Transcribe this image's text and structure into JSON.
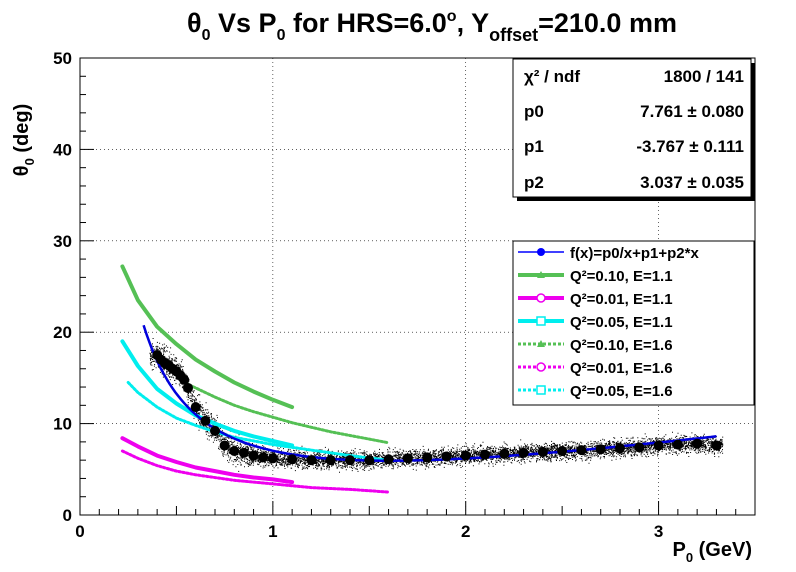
{
  "chart_data": {
    "type": "scatter",
    "title": {
      "theta": "θ",
      "theta_sub": "0",
      "part1": " Vs P",
      "p_sub": "0",
      "part2": " for HRS=6.0",
      "deg_sup": "o",
      "part3": ", Y",
      "y_sub": "offset",
      "part4": "=210.0 mm"
    },
    "ylabel": {
      "theta": "θ",
      "sub": "0",
      "unit": " (deg)"
    },
    "xlabel": {
      "p": "P",
      "sub": "0",
      "unit": " (GeV)"
    },
    "xlim": [
      0,
      3.5
    ],
    "ylim": [
      0,
      50
    ],
    "x_ticks": [
      "0",
      "1",
      "2",
      "3"
    ],
    "y_ticks": [
      "0",
      "10",
      "20",
      "30",
      "40",
      "50"
    ],
    "grid": true,
    "fit_box": {
      "rows": [
        {
          "label": "χ² / ndf",
          "value": "1800 / 141"
        },
        {
          "label": "p0",
          "value": "7.761 ± 0.080"
        },
        {
          "label": "p1",
          "value": "-3.767 ± 0.111"
        },
        {
          "label": "p2",
          "value": "3.037 ± 0.035"
        }
      ]
    },
    "fit": {
      "function": "f(x)=p0/x+p1+p2*x",
      "p0": 7.761,
      "p1": -3.767,
      "p2": 3.037,
      "x_range": [
        0.33,
        3.3
      ],
      "color": "#0000dd"
    },
    "legend": {
      "placement": "right",
      "entries": [
        {
          "label": "f(x)=p0/x+p1+p2*x",
          "color": "#0000ff",
          "marker": "circle",
          "style": "solid"
        },
        {
          "label": "Q²=0.10, E=1.1",
          "color": "#55c055",
          "marker": "triangle",
          "style": "solid"
        },
        {
          "label": "Q²=0.01, E=1.1",
          "color": "#ee00ee",
          "marker": "open-circle",
          "style": "solid"
        },
        {
          "label": "Q²=0.05, E=1.1",
          "color": "#00eeee",
          "marker": "open-cross",
          "style": "solid"
        },
        {
          "label": "Q²=0.10, E=1.6",
          "color": "#55c055",
          "marker": "triangle",
          "style": "dashed"
        },
        {
          "label": "Q²=0.01, E=1.6",
          "color": "#ee00ee",
          "marker": "open-circle",
          "style": "dashed"
        },
        {
          "label": "Q²=0.05, E=1.6",
          "color": "#00eeee",
          "marker": "open-cross",
          "style": "dashed"
        }
      ]
    },
    "series": [
      {
        "name": "Q²=0.10, E=1.1",
        "color": "#55c055",
        "style": "solid",
        "x": [
          0.22,
          0.3,
          0.4,
          0.5,
          0.6,
          0.7,
          0.8,
          0.9,
          1.0,
          1.1
        ],
        "y": [
          27.2,
          23.5,
          20.6,
          18.7,
          17.0,
          15.7,
          14.5,
          13.5,
          12.6,
          11.8
        ]
      },
      {
        "name": "Q²=0.01, E=1.1",
        "color": "#ee00ee",
        "style": "solid",
        "x": [
          0.22,
          0.3,
          0.4,
          0.5,
          0.6,
          0.7,
          0.8,
          0.9,
          1.0,
          1.1
        ],
        "y": [
          8.4,
          7.5,
          6.5,
          5.8,
          5.2,
          4.8,
          4.4,
          4.1,
          3.9,
          3.6
        ]
      },
      {
        "name": "Q²=0.05, E=1.1",
        "color": "#00eeee",
        "style": "solid",
        "x": [
          0.22,
          0.3,
          0.4,
          0.5,
          0.6,
          0.7,
          0.8,
          0.9,
          1.0,
          1.1
        ],
        "y": [
          19.0,
          16.3,
          13.8,
          12.2,
          10.9,
          10.0,
          9.2,
          8.6,
          8.1,
          7.6
        ]
      },
      {
        "name": "Q²=0.10, E=1.6",
        "color": "#55c055",
        "style": "dashed",
        "x": [
          0.55,
          0.7,
          0.8,
          0.9,
          1.0,
          1.1,
          1.2,
          1.3,
          1.4,
          1.5,
          1.6
        ],
        "y": [
          14.4,
          12.9,
          12.0,
          11.3,
          10.7,
          10.1,
          9.6,
          9.1,
          8.7,
          8.3,
          7.9
        ]
      },
      {
        "name": "Q²=0.01, E=1.6",
        "color": "#ee00ee",
        "style": "dashed",
        "x": [
          0.22,
          0.3,
          0.4,
          0.5,
          0.6,
          0.8,
          1.0,
          1.2,
          1.4,
          1.6
        ],
        "y": [
          7.0,
          6.2,
          5.4,
          4.8,
          4.4,
          3.8,
          3.4,
          3.0,
          2.8,
          2.5
        ]
      },
      {
        "name": "Q²=0.05, E=1.6",
        "color": "#00eeee",
        "style": "dashed",
        "x": [
          0.25,
          0.3,
          0.4,
          0.5,
          0.6,
          0.7,
          0.8,
          1.0,
          1.2,
          1.4,
          1.6
        ],
        "y": [
          14.5,
          13.4,
          11.8,
          10.6,
          9.8,
          9.1,
          8.5,
          7.7,
          7.1,
          6.5,
          6.0
        ]
      }
    ],
    "profile_points": {
      "name": "data profile",
      "color": "#000000",
      "x": [
        0.4,
        0.42,
        0.44,
        0.46,
        0.48,
        0.5,
        0.52,
        0.54,
        0.56,
        0.6,
        0.65,
        0.7,
        0.75,
        0.8,
        0.85,
        0.9,
        0.95,
        1.0,
        1.1,
        1.2,
        1.3,
        1.4,
        1.5,
        1.6,
        1.7,
        1.8,
        1.9,
        2.0,
        2.1,
        2.2,
        2.3,
        2.4,
        2.5,
        2.6,
        2.7,
        2.8,
        2.9,
        3.0,
        3.1,
        3.2,
        3.3
      ],
      "y": [
        17.5,
        17.0,
        16.6,
        16.4,
        16.0,
        15.7,
        15.3,
        14.8,
        13.9,
        11.8,
        10.3,
        9.2,
        7.6,
        7.0,
        6.8,
        6.5,
        6.3,
        6.2,
        6.1,
        6.0,
        6.0,
        6.0,
        6.0,
        6.1,
        6.2,
        6.3,
        6.4,
        6.5,
        6.6,
        6.7,
        6.8,
        6.9,
        7.0,
        7.1,
        7.2,
        7.3,
        7.4,
        7.6,
        7.7,
        7.8,
        7.6
      ]
    }
  }
}
